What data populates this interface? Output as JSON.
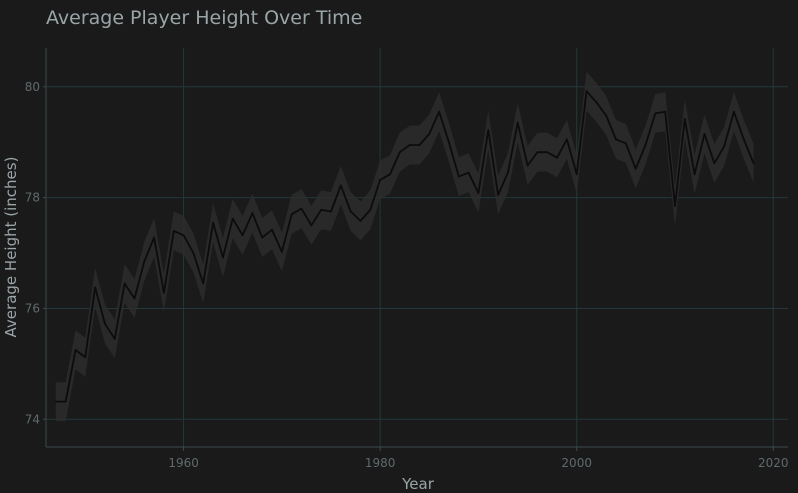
{
  "chart_data": {
    "type": "line",
    "title": "Average Player Height Over Time",
    "xlabel": "Year",
    "ylabel": "Average Height (inches)",
    "xlim": [
      1946,
      2021.5
    ],
    "ylim": [
      73.5,
      80.7
    ],
    "xticks": [
      1960,
      1980,
      2000,
      2020
    ],
    "yticks": [
      74,
      76,
      78,
      80
    ],
    "grid": true,
    "legend": "none",
    "colors": {
      "line": "#0c0c0c",
      "band": "#2d2d2d",
      "grid": "#22393c",
      "background": "#1a1a1a"
    },
    "series": [
      {
        "x": [
          1947,
          1948,
          1949,
          1950,
          1951,
          1952,
          1953,
          1954,
          1955,
          1956,
          1957,
          1958,
          1959,
          1960,
          1961,
          1962,
          1963,
          1964,
          1965,
          1966,
          1967,
          1968,
          1969,
          1970,
          1971,
          1972,
          1973,
          1974,
          1975,
          1976,
          1977,
          1978,
          1979,
          1980,
          1981,
          1982,
          1983,
          1984,
          1985,
          1986,
          1987,
          1988,
          1989,
          1990,
          1991,
          1992,
          1993,
          1994,
          1995,
          1996,
          1997,
          1998,
          1999,
          2000,
          2001,
          2002,
          2003,
          2004,
          2005,
          2006,
          2007,
          2008,
          2009,
          2010,
          2011,
          2012,
          2013,
          2014,
          2015,
          2016,
          2017,
          2018
        ],
        "y": [
          74.32,
          74.32,
          75.25,
          75.12,
          76.38,
          75.72,
          75.45,
          76.45,
          76.18,
          76.85,
          77.28,
          76.28,
          77.4,
          77.32,
          77.0,
          76.45,
          77.55,
          76.92,
          77.62,
          77.32,
          77.72,
          77.28,
          77.42,
          77.02,
          77.7,
          77.8,
          77.5,
          77.78,
          77.75,
          78.22,
          77.75,
          77.58,
          77.78,
          78.32,
          78.42,
          78.82,
          78.95,
          78.95,
          79.15,
          79.55,
          79.0,
          78.38,
          78.45,
          78.08,
          79.22,
          78.05,
          78.45,
          79.35,
          78.58,
          78.82,
          78.82,
          78.72,
          79.05,
          78.42,
          79.92,
          79.72,
          79.48,
          79.05,
          78.98,
          78.52,
          78.95,
          79.52,
          79.55,
          77.85,
          79.42,
          78.42,
          79.15,
          78.62,
          78.92,
          79.55,
          79.05,
          78.62
        ],
        "ci_halfwidth": 0.35
      }
    ]
  }
}
